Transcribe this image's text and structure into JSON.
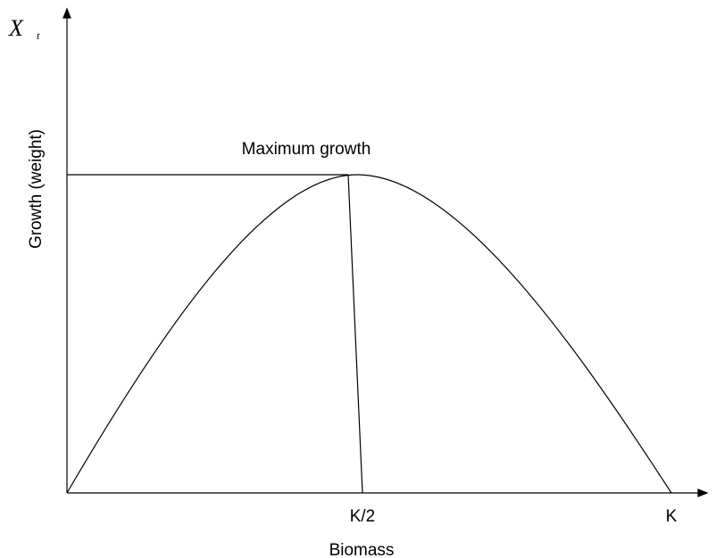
{
  "y_symbol": "X",
  "y_symbol_subscript": "t",
  "y_title": "Growth (weight)",
  "x_title": "Biomass",
  "x_ticks": [
    "K/2",
    "K"
  ],
  "annotation": "Maximum growth"
}
